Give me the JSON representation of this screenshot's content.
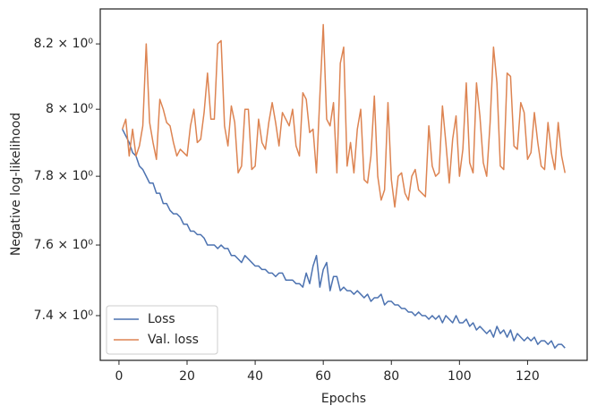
{
  "chart_data": {
    "type": "line",
    "xlabel": "Epochs",
    "ylabel": "Negative log-likelihood",
    "x": [
      1,
      2,
      3,
      4,
      5,
      6,
      7,
      8,
      9,
      10,
      11,
      12,
      13,
      14,
      15,
      16,
      17,
      18,
      19,
      20,
      21,
      22,
      23,
      24,
      25,
      26,
      27,
      28,
      29,
      30,
      31,
      32,
      33,
      34,
      35,
      36,
      37,
      38,
      39,
      40,
      41,
      42,
      43,
      44,
      45,
      46,
      47,
      48,
      49,
      50,
      51,
      52,
      53,
      54,
      55,
      56,
      57,
      58,
      59,
      60,
      61,
      62,
      63,
      64,
      65,
      66,
      67,
      68,
      69,
      70,
      71,
      72,
      73,
      74,
      75,
      76,
      77,
      78,
      79,
      80,
      81,
      82,
      83,
      84,
      85,
      86,
      87,
      88,
      89,
      90,
      91,
      92,
      93,
      94,
      95,
      96,
      97,
      98,
      99,
      100,
      101,
      102,
      103,
      104,
      105,
      106,
      107,
      108,
      109,
      110,
      111,
      112,
      113,
      114,
      115,
      116,
      117,
      118,
      119,
      120,
      121,
      122,
      123,
      124,
      125,
      126,
      127,
      128,
      129,
      130,
      131
    ],
    "series": [
      {
        "name": "Loss",
        "color": "#4c72b0",
        "values": [
          7.94,
          7.92,
          7.9,
          7.87,
          7.86,
          7.83,
          7.82,
          7.8,
          7.78,
          7.78,
          7.75,
          7.75,
          7.72,
          7.72,
          7.7,
          7.69,
          7.69,
          7.68,
          7.66,
          7.66,
          7.64,
          7.64,
          7.63,
          7.63,
          7.62,
          7.6,
          7.6,
          7.6,
          7.59,
          7.6,
          7.59,
          7.59,
          7.57,
          7.57,
          7.56,
          7.55,
          7.57,
          7.56,
          7.55,
          7.54,
          7.54,
          7.53,
          7.53,
          7.52,
          7.52,
          7.51,
          7.52,
          7.52,
          7.5,
          7.5,
          7.5,
          7.49,
          7.49,
          7.48,
          7.52,
          7.49,
          7.54,
          7.57,
          7.48,
          7.53,
          7.55,
          7.47,
          7.51,
          7.51,
          7.47,
          7.48,
          7.47,
          7.47,
          7.46,
          7.47,
          7.46,
          7.45,
          7.46,
          7.44,
          7.45,
          7.45,
          7.46,
          7.43,
          7.44,
          7.44,
          7.43,
          7.43,
          7.42,
          7.42,
          7.41,
          7.41,
          7.4,
          7.41,
          7.4,
          7.4,
          7.39,
          7.4,
          7.39,
          7.4,
          7.38,
          7.4,
          7.39,
          7.38,
          7.4,
          7.38,
          7.38,
          7.39,
          7.37,
          7.38,
          7.36,
          7.37,
          7.36,
          7.35,
          7.36,
          7.34,
          7.37,
          7.35,
          7.36,
          7.34,
          7.36,
          7.33,
          7.35,
          7.34,
          7.33,
          7.34,
          7.33,
          7.34,
          7.32,
          7.33,
          7.33,
          7.32,
          7.33,
          7.31,
          7.32,
          7.32,
          7.31
        ]
      },
      {
        "name": "Val. loss",
        "color": "#dd8452",
        "values": [
          7.94,
          7.97,
          7.86,
          7.94,
          7.86,
          7.89,
          7.95,
          8.2,
          7.96,
          7.9,
          7.85,
          8.03,
          8.0,
          7.96,
          7.95,
          7.9,
          7.86,
          7.88,
          7.87,
          7.86,
          7.95,
          8.0,
          7.9,
          7.91,
          7.99,
          8.11,
          7.97,
          7.97,
          8.2,
          8.21,
          7.95,
          7.89,
          8.01,
          7.96,
          7.81,
          7.83,
          8.0,
          8.0,
          7.82,
          7.83,
          7.97,
          7.9,
          7.88,
          7.96,
          8.02,
          7.96,
          7.89,
          7.99,
          7.97,
          7.95,
          8.0,
          7.89,
          7.86,
          8.05,
          8.03,
          7.93,
          7.94,
          7.81,
          8.04,
          8.26,
          7.97,
          7.95,
          8.02,
          7.81,
          8.14,
          8.19,
          7.83,
          7.9,
          7.81,
          7.94,
          8.0,
          7.79,
          7.78,
          7.86,
          8.04,
          7.8,
          7.73,
          7.76,
          8.02,
          7.79,
          7.71,
          7.8,
          7.81,
          7.75,
          7.73,
          7.8,
          7.82,
          7.76,
          7.75,
          7.74,
          7.95,
          7.83,
          7.8,
          7.81,
          8.01,
          7.9,
          7.78,
          7.91,
          7.98,
          7.8,
          7.88,
          8.08,
          7.84,
          7.81,
          8.08,
          7.98,
          7.84,
          7.8,
          7.96,
          8.19,
          8.08,
          7.83,
          7.82,
          8.11,
          8.1,
          7.89,
          7.88,
          8.02,
          7.99,
          7.85,
          7.87,
          7.99,
          7.9,
          7.83,
          7.82,
          7.96,
          7.87,
          7.82,
          7.96,
          7.86,
          7.81
        ]
      }
    ],
    "xlim": [
      -5.5,
      137.5
    ],
    "xticks": [
      0,
      20,
      40,
      60,
      80,
      100,
      120
    ],
    "ylim": [
      7.276,
      8.309
    ],
    "log_y": true,
    "yticks": [
      {
        "value": 7.4,
        "label": "7.4 × 10⁰"
      },
      {
        "value": 7.6,
        "label": "7.6 × 10⁰"
      },
      {
        "value": 7.8,
        "label": "7.8 × 10⁰"
      },
      {
        "value": 8.0,
        "label": "8 × 10⁰"
      },
      {
        "value": 8.2,
        "label": "8.2 × 10⁰"
      }
    ],
    "legend": "lower left"
  }
}
